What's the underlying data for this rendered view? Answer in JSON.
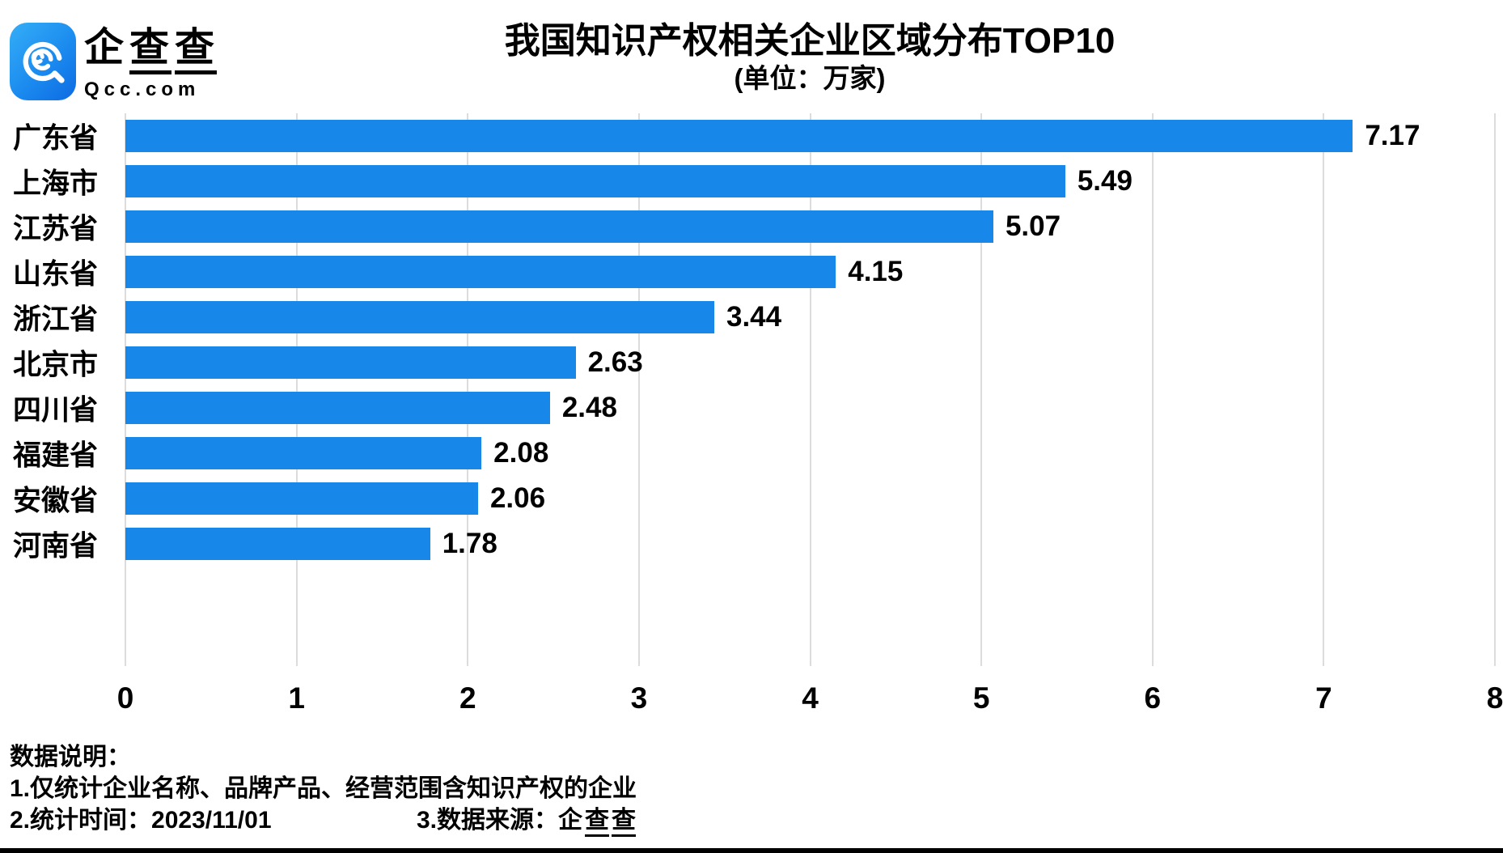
{
  "brand": {
    "name_plain": "企",
    "name_u1": "查",
    "name_u2": "查",
    "domain": "Qcc.com"
  },
  "header": {
    "title": "我国知识产权相关企业区域分布TOP10",
    "subtitle": "(单位：万家)"
  },
  "chart_data": {
    "type": "bar",
    "orientation": "horizontal",
    "title": "我国知识产权相关企业区域分布TOP10",
    "unit_label": "(单位：万家)",
    "categories": [
      "广东省",
      "上海市",
      "江苏省",
      "山东省",
      "浙江省",
      "北京市",
      "四川省",
      "福建省",
      "安徽省",
      "河南省"
    ],
    "values": [
      7.17,
      5.49,
      5.07,
      4.15,
      3.44,
      2.63,
      2.48,
      2.08,
      2.06,
      1.78
    ],
    "value_labels": [
      "7.17",
      "5.49",
      "5.07",
      "4.15",
      "3.44",
      "2.63",
      "2.48",
      "2.08",
      "2.06",
      "1.78"
    ],
    "xlim": [
      0,
      8
    ],
    "x_ticks": [
      0,
      1,
      2,
      3,
      4,
      5,
      6,
      7,
      8
    ],
    "grid": true,
    "legend": "none",
    "bar_color": "#1787E9",
    "gridline_color": "#dcdcdc"
  },
  "footer": {
    "heading": "数据说明：",
    "note1": "1.仅统计企业名称、品牌产品、经营范围含知识产权的企业",
    "note2": "2.统计时间：2023/11/01",
    "note3_prefix": "3.数据来源：",
    "note3_plain": "企",
    "note3_u1": "查",
    "note3_u2": "查"
  }
}
